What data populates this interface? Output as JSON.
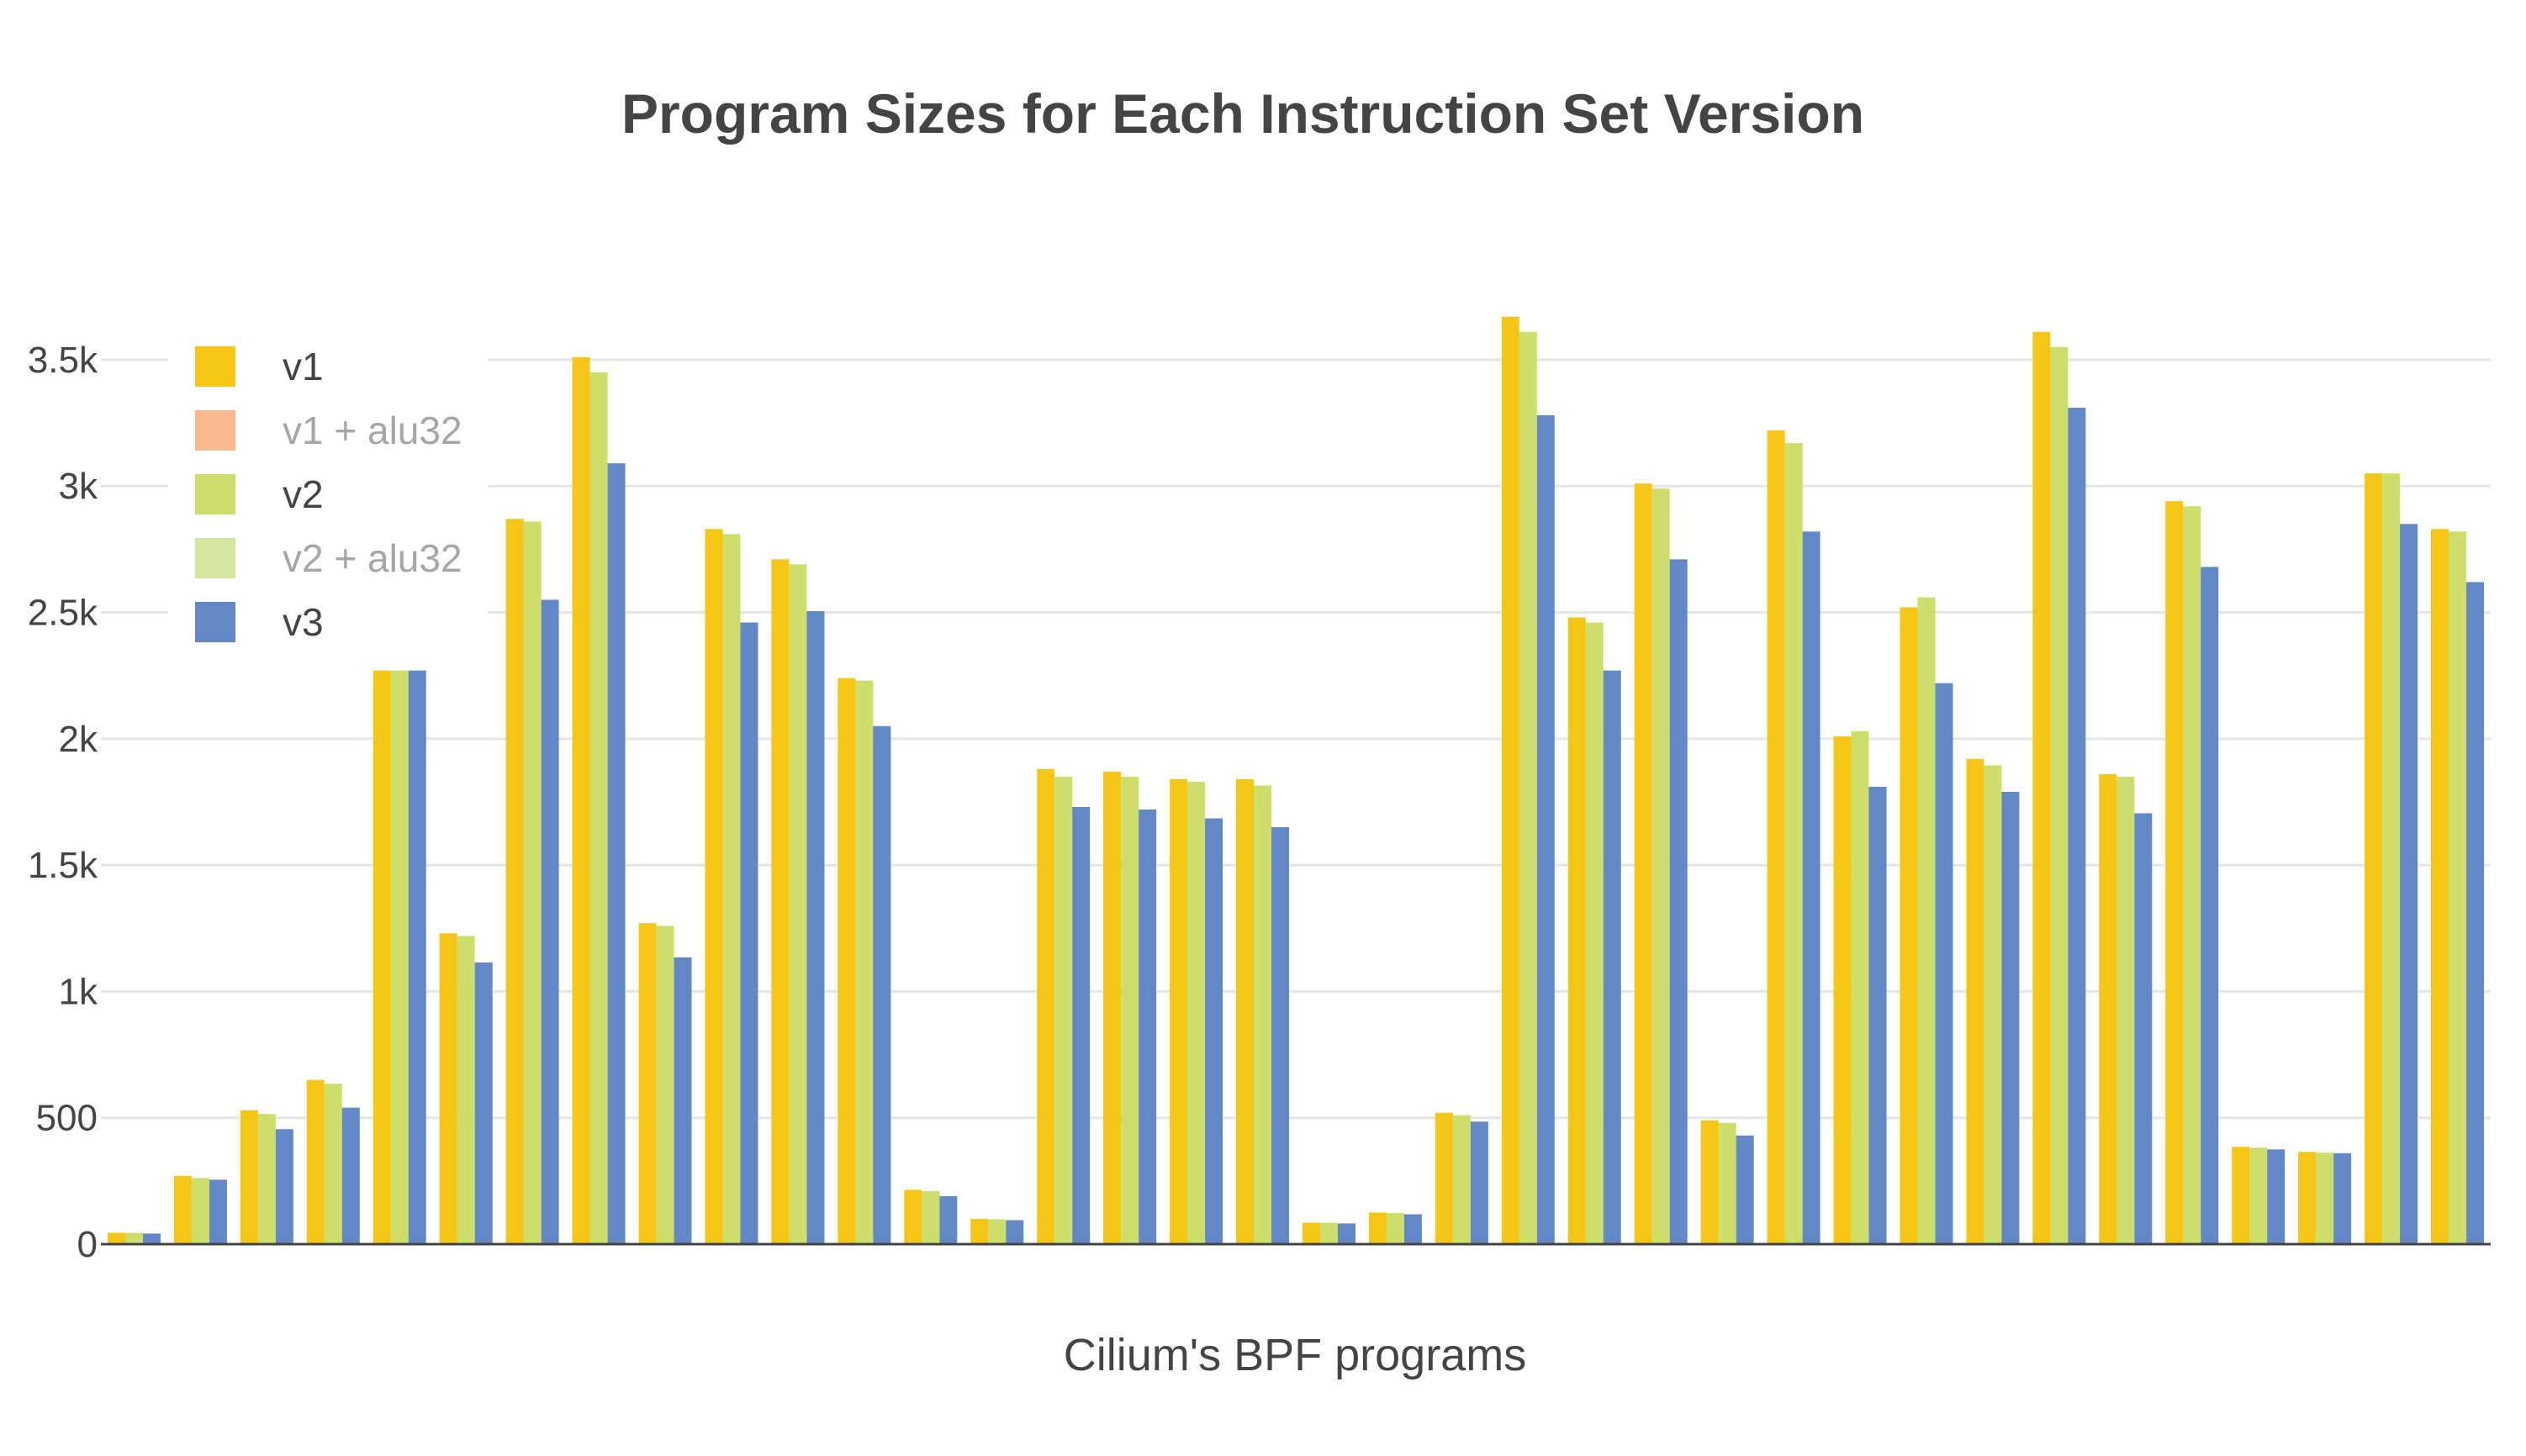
{
  "chart_data": {
    "type": "bar",
    "title": "Program Sizes for Each Instruction Set Version",
    "xlabel": "Cilium's BPF programs",
    "ylabel": "",
    "ylim": [
      0,
      3800
    ],
    "yticks": [
      0,
      500,
      1000,
      1500,
      2000,
      2500,
      3000,
      3500
    ],
    "ytick_labels": [
      "0",
      "500",
      "1k",
      "1.5k",
      "2k",
      "2.5k",
      "3k",
      "3.5k"
    ],
    "grid": true,
    "legend_position": "top-left",
    "series": [
      {
        "name": "v1",
        "color": "#f5c518",
        "visible": true,
        "values": [
          45,
          270,
          530,
          650,
          2270,
          1230,
          2870,
          3510,
          1270,
          2830,
          2710,
          2240,
          215,
          100,
          1880,
          1870,
          1840,
          1840,
          85,
          125,
          520,
          3670,
          2480,
          3010,
          490,
          3220,
          2010,
          2520,
          1920,
          3610,
          1860,
          2940,
          385,
          365,
          3050,
          2830
        ]
      },
      {
        "name": "v1 + alu32",
        "color": "#f9b88f",
        "visible": false,
        "values": []
      },
      {
        "name": "v2",
        "color": "#cddf6a",
        "visible": true,
        "values": [
          45,
          262,
          515,
          635,
          2270,
          1220,
          2860,
          3450,
          1260,
          2810,
          2690,
          2230,
          210,
          98,
          1850,
          1850,
          1830,
          1815,
          85,
          123,
          510,
          3610,
          2460,
          2990,
          480,
          3170,
          2030,
          2560,
          1895,
          3550,
          1850,
          2920,
          382,
          362,
          3050,
          2820
        ]
      },
      {
        "name": "v2 + alu32",
        "color": "#d2e5a1",
        "visible": false,
        "values": []
      },
      {
        "name": "v3",
        "color": "#6388c6",
        "visible": true,
        "values": [
          42,
          255,
          455,
          540,
          2270,
          1115,
          2550,
          3090,
          1135,
          2460,
          2505,
          2050,
          190,
          95,
          1730,
          1720,
          1685,
          1650,
          82,
          118,
          485,
          3280,
          2270,
          2710,
          430,
          2820,
          1810,
          2220,
          1790,
          3310,
          1705,
          2680,
          375,
          360,
          2850,
          2620
        ]
      }
    ]
  }
}
